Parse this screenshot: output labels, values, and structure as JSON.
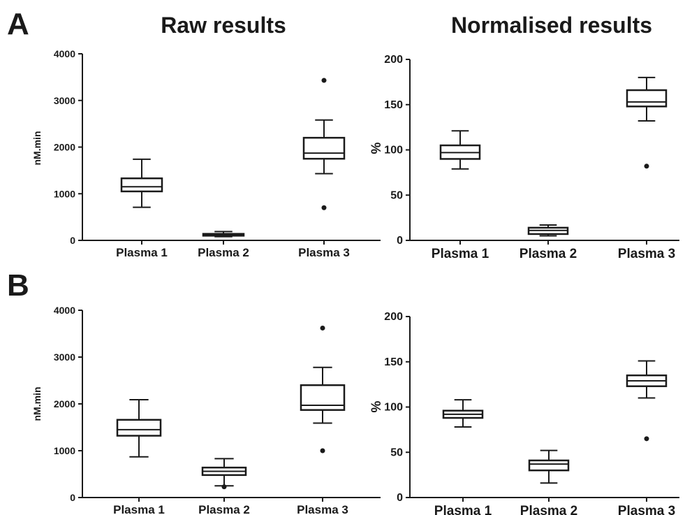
{
  "figure": {
    "panel_labels": [
      "A",
      "B"
    ],
    "column_titles": [
      "Raw results",
      "Normalised results"
    ]
  },
  "chart_data": [
    {
      "type": "box",
      "panel": "A",
      "title": "Raw results",
      "ylabel": "nM.min",
      "ylim": [
        0,
        4000
      ],
      "yticks": [
        0,
        1000,
        2000,
        3000,
        4000
      ],
      "categories": [
        "Plasma 1",
        "Plasma 2",
        "Plasma 3"
      ],
      "boxes": [
        {
          "min": 710,
          "q1": 1050,
          "median": 1150,
          "q3": 1330,
          "max": 1740,
          "outliers": []
        },
        {
          "min": 80,
          "q1": 100,
          "median": 120,
          "q3": 140,
          "max": 190,
          "outliers": []
        },
        {
          "min": 1430,
          "q1": 1750,
          "median": 1870,
          "q3": 2200,
          "max": 2580,
          "outliers": [
            3430,
            700
          ]
        }
      ]
    },
    {
      "type": "box",
      "panel": "A",
      "title": "Normalised results",
      "ylabel": "%",
      "ylim": [
        0,
        200
      ],
      "yticks": [
        0,
        50,
        100,
        150,
        200
      ],
      "categories": [
        "Plasma 1",
        "Plasma 2",
        "Plasma 3"
      ],
      "boxes": [
        {
          "min": 79,
          "q1": 90,
          "median": 97,
          "q3": 105,
          "max": 121,
          "outliers": []
        },
        {
          "min": 5,
          "q1": 7,
          "median": 11,
          "q3": 14,
          "max": 17,
          "outliers": []
        },
        {
          "min": 132,
          "q1": 148,
          "median": 153,
          "q3": 166,
          "max": 180,
          "outliers": [
            82
          ]
        }
      ]
    },
    {
      "type": "box",
      "panel": "B",
      "title": "",
      "ylabel": "nM.min",
      "ylim": [
        0,
        4000
      ],
      "yticks": [
        0,
        1000,
        2000,
        3000,
        4000
      ],
      "categories": [
        "Plasma 1",
        "Plasma 2",
        "Plasma 3"
      ],
      "boxes": [
        {
          "min": 870,
          "q1": 1320,
          "median": 1450,
          "q3": 1660,
          "max": 2090,
          "outliers": []
        },
        {
          "min": 250,
          "q1": 480,
          "median": 560,
          "q3": 640,
          "max": 830,
          "outliers": [
            230
          ]
        },
        {
          "min": 1590,
          "q1": 1870,
          "median": 1970,
          "q3": 2400,
          "max": 2780,
          "outliers": [
            3620,
            1000
          ]
        }
      ]
    },
    {
      "type": "box",
      "panel": "B",
      "title": "",
      "ylabel": "%",
      "ylim": [
        0,
        200
      ],
      "yticks": [
        0,
        50,
        100,
        150,
        200
      ],
      "categories": [
        "Plasma 1",
        "Plasma 2",
        "Plasma 3"
      ],
      "boxes": [
        {
          "min": 78,
          "q1": 88,
          "median": 92,
          "q3": 96,
          "max": 108,
          "outliers": []
        },
        {
          "min": 16,
          "q1": 30,
          "median": 37,
          "q3": 41,
          "max": 52,
          "outliers": []
        },
        {
          "min": 110,
          "q1": 123,
          "median": 129,
          "q3": 135,
          "max": 151,
          "outliers": [
            65
          ]
        }
      ]
    }
  ]
}
